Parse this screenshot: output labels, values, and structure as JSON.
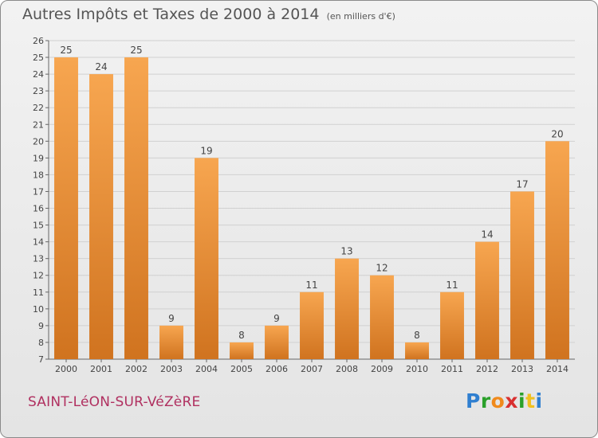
{
  "title": "Autres Impôts et Taxes de 2000 à 2014",
  "unit": "(en milliers d'€)",
  "town": "SAINT-LéON-SUR-VéZèRE",
  "logo": "Proxiti",
  "colors": {
    "bar_light": "#f7a650",
    "bar_dark": "#d0731f",
    "grid": "#d0d0d0",
    "axis": "#666666",
    "town": "#b03060"
  },
  "chart_data": {
    "type": "bar",
    "title": "Autres Impôts et Taxes de 2000 à 2014",
    "subtitle": "(en milliers d'€)",
    "xlabel": "",
    "ylabel": "",
    "categories": [
      "2000",
      "2001",
      "2002",
      "2003",
      "2004",
      "2005",
      "2006",
      "2007",
      "2008",
      "2009",
      "2010",
      "2011",
      "2012",
      "2013",
      "2014"
    ],
    "values": [
      25,
      24,
      25,
      9,
      19,
      8,
      9,
      11,
      13,
      12,
      8,
      11,
      14,
      17,
      20
    ],
    "ylim": [
      7,
      26
    ],
    "yticks": [
      7,
      8,
      9,
      10,
      11,
      12,
      13,
      14,
      15,
      16,
      17,
      18,
      19,
      20,
      21,
      22,
      23,
      24,
      25,
      26
    ],
    "grid": true,
    "data_labels": true
  }
}
